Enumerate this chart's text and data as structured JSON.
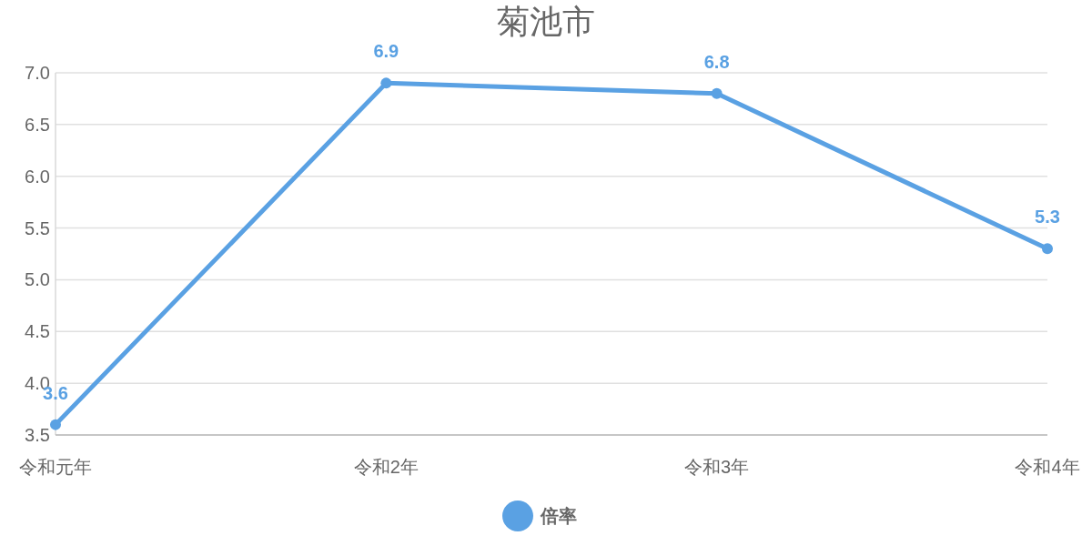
{
  "chart_data": {
    "type": "line",
    "title": "菊池市",
    "categories": [
      "令和元年",
      "令和2年",
      "令和3年",
      "令和4年"
    ],
    "series": [
      {
        "name": "倍率",
        "color": "#5aa1e3",
        "values": [
          3.6,
          6.9,
          6.8,
          5.3
        ]
      }
    ],
    "ylim": [
      3.5,
      7.0
    ],
    "yticks": [
      {
        "value": 3.5,
        "label": "3.5"
      },
      {
        "value": 4.0,
        "label": "4.0"
      },
      {
        "value": 4.5,
        "label": "4.5"
      },
      {
        "value": 5.0,
        "label": "5.0"
      },
      {
        "value": 5.5,
        "label": "5.5"
      },
      {
        "value": 6.0,
        "label": "6.0"
      },
      {
        "value": 6.5,
        "label": "6.5"
      },
      {
        "value": 7.0,
        "label": "7.0"
      }
    ],
    "grid": "y",
    "legend": "bottom",
    "marker": "circle",
    "line_style": "solid",
    "data_labels": true
  }
}
